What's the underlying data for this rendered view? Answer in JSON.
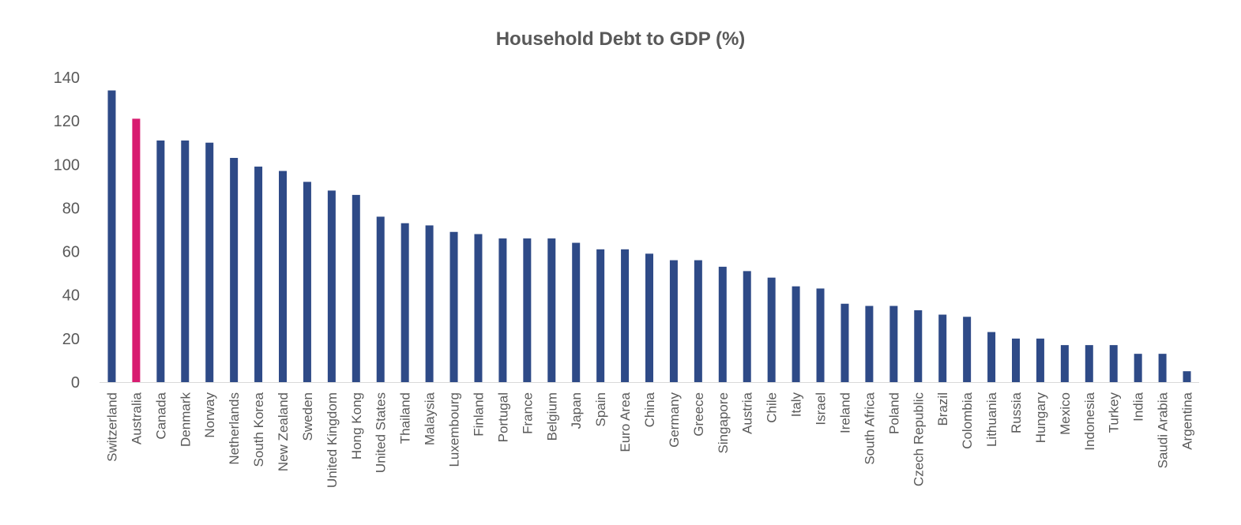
{
  "chart_data": {
    "type": "bar",
    "title": "Household Debt to GDP (%)",
    "xlabel": "",
    "ylabel": "",
    "ylim": [
      0,
      140
    ],
    "yticks": [
      0,
      20,
      40,
      60,
      80,
      100,
      120,
      140
    ],
    "grid": false,
    "legend": "none",
    "colors": {
      "default": "#2e4a87",
      "highlight": "#d81b70",
      "axis": "#d9d9d9",
      "text": "#595959"
    },
    "highlight_category": "Australia",
    "categories": [
      "Switzerland",
      "Australia",
      "Canada",
      "Denmark",
      "Norway",
      "Netherlands",
      "South Korea",
      "New Zealand",
      "Sweden",
      "United Kingdom",
      "Hong Kong",
      "United States",
      "Thailand",
      "Malaysia",
      "Luxembourg",
      "Finland",
      "Portugal",
      "France",
      "Belgium",
      "Japan",
      "Spain",
      "Euro Area",
      "China",
      "Germany",
      "Greece",
      "Singapore",
      "Austria",
      "Chile",
      "Italy",
      "Israel",
      "Ireland",
      "South Africa",
      "Poland",
      "Czech Republic",
      "Brazil",
      "Colombia",
      "Lithuania",
      "Russia",
      "Hungary",
      "Mexico",
      "Indonesia",
      "Turkey",
      "India",
      "Saudi Arabia",
      "Argentina"
    ],
    "values": [
      134,
      121,
      111,
      111,
      110,
      103,
      99,
      97,
      92,
      88,
      86,
      76,
      73,
      72,
      69,
      68,
      66,
      66,
      66,
      64,
      61,
      61,
      59,
      56,
      56,
      53,
      51,
      48,
      44,
      43,
      36,
      35,
      35,
      33,
      31,
      30,
      23,
      20,
      20,
      17,
      17,
      17,
      13,
      13,
      5
    ]
  }
}
